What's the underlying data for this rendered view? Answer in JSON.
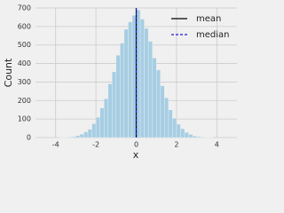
{
  "chart_data": {
    "type": "histogram",
    "x_label": "x",
    "y_label": "Count",
    "bins": [
      -4.0,
      -3.8,
      -3.6,
      -3.4,
      -3.2,
      -3.0,
      -2.8,
      -2.6,
      -2.4,
      -2.2,
      -2.0,
      -1.8,
      -1.6,
      -1.4,
      -1.2,
      -1.0,
      -0.8,
      -0.6,
      -0.4,
      -0.2,
      0.0,
      0.2,
      0.4,
      0.6,
      0.8,
      1.0,
      1.2,
      1.4,
      1.6,
      1.8,
      2.0,
      2.2,
      2.4,
      2.6,
      2.8,
      3.0,
      3.2,
      3.4,
      3.6,
      3.8,
      4.0
    ],
    "values": [
      0,
      1,
      1,
      3,
      5,
      11,
      18,
      30,
      45,
      75,
      110,
      160,
      210,
      290,
      355,
      445,
      510,
      585,
      625,
      660,
      690,
      640,
      590,
      520,
      430,
      365,
      280,
      215,
      150,
      105,
      72,
      48,
      28,
      17,
      9,
      5,
      3,
      1,
      1,
      0
    ],
    "color": "#a6cee3",
    "lines": [
      {
        "name": "mean",
        "value": 0.0,
        "color": "#000000",
        "dash": false
      },
      {
        "name": "median",
        "value": 0.0,
        "color": "#1f1fd0",
        "dash": true
      }
    ],
    "xlim": [
      -5,
      5
    ],
    "xticks": [
      -4,
      -2,
      0,
      2,
      4
    ],
    "ylim": [
      0,
      700
    ],
    "yticks": [
      0,
      100,
      200,
      300,
      400,
      500,
      600,
      700
    ],
    "grid": true,
    "legend": "upper right"
  }
}
